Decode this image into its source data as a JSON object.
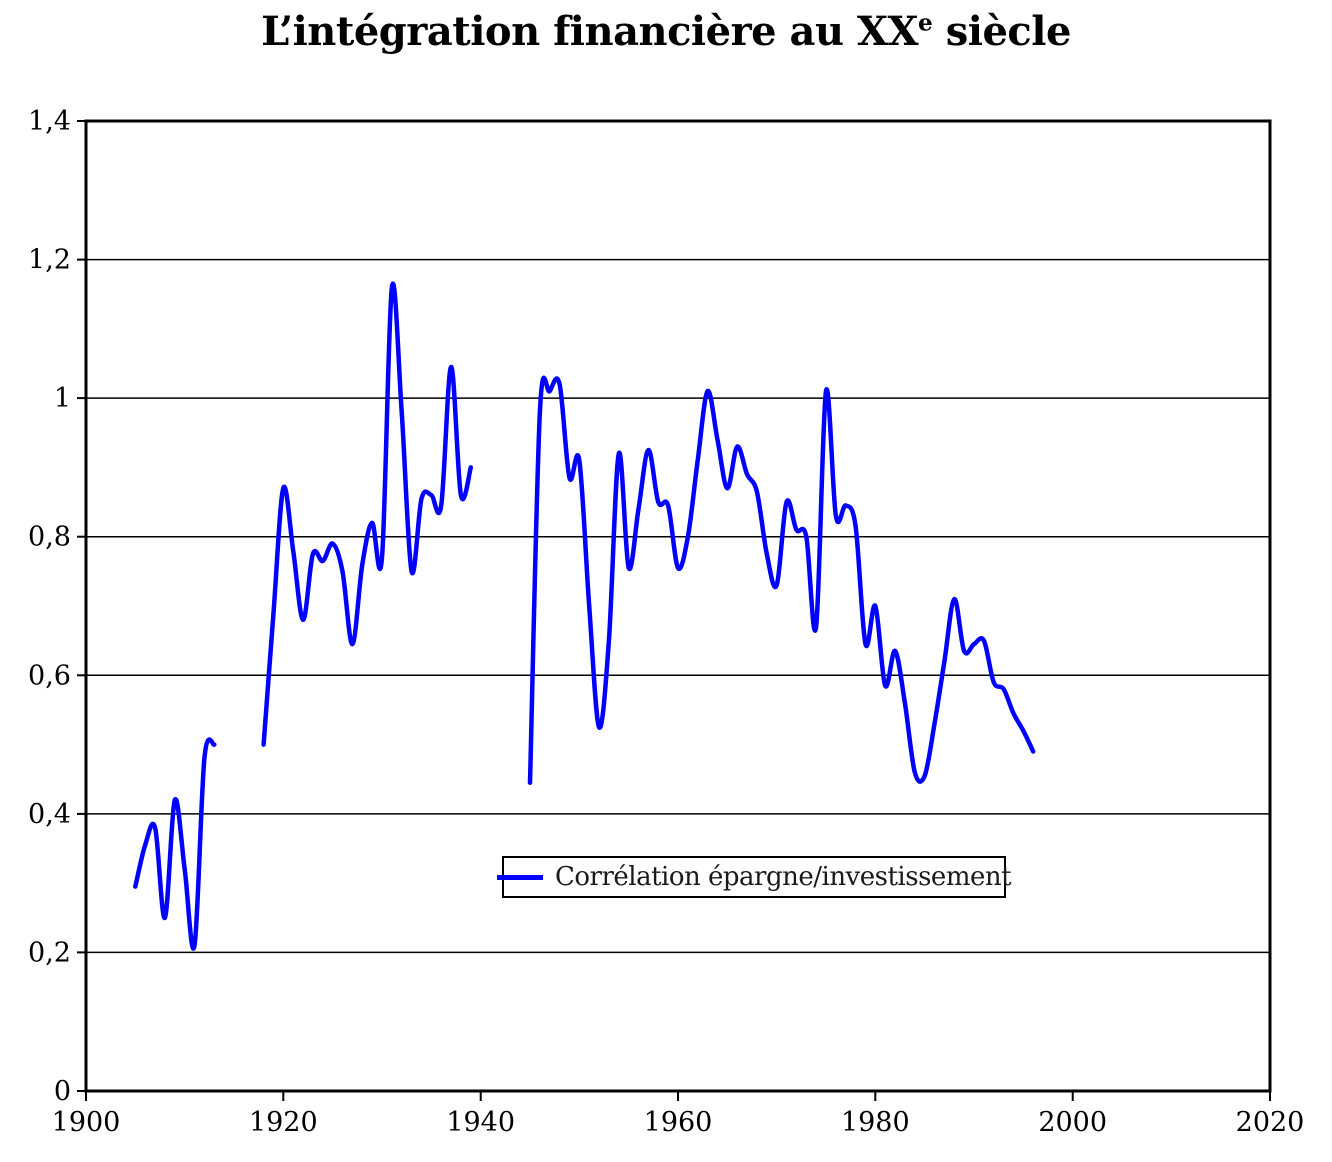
{
  "title": {
    "before_sup": "L’intégration financière au XX",
    "sup": "e",
    "after_sup": " siècle"
  },
  "legend": {
    "label": "Corrélation épargne/investissement"
  },
  "colors": {
    "line": "#0000ff",
    "axis": "#000000",
    "grid": "#000000",
    "background": "#ffffff"
  },
  "chart_data": {
    "type": "line",
    "title": "L’intégration financière au XXe siècle",
    "xlabel": "",
    "ylabel": "",
    "xlim": [
      1900,
      2020
    ],
    "ylim": [
      0,
      1.4
    ],
    "grid": "horizontal",
    "legend_position": "inside-bottom-center",
    "x_ticks": [
      {
        "value": 1900,
        "label": "1900"
      },
      {
        "value": 1920,
        "label": "1920"
      },
      {
        "value": 1940,
        "label": "1940"
      },
      {
        "value": 1960,
        "label": "1960"
      },
      {
        "value": 1980,
        "label": "1980"
      },
      {
        "value": 2000,
        "label": "2000"
      },
      {
        "value": 2020,
        "label": "2020"
      }
    ],
    "y_ticks": [
      {
        "value": 0,
        "label": "0"
      },
      {
        "value": 0.2,
        "label": "0,2"
      },
      {
        "value": 0.4,
        "label": "0,4"
      },
      {
        "value": 0.6,
        "label": "0,6"
      },
      {
        "value": 0.8,
        "label": "0,8"
      },
      {
        "value": 1,
        "label": "1"
      },
      {
        "value": 1.2,
        "label": "1,2"
      },
      {
        "value": 1.4,
        "label": "1,4"
      }
    ],
    "series": [
      {
        "name": "Corrélation épargne/investissement",
        "color": "#0000ff",
        "segments": [
          {
            "start_year": 1905,
            "values": [
              0.295,
              0.355,
              0.38,
              0.25,
              0.42,
              0.32,
              0.21,
              0.48,
              0.5
            ]
          },
          {
            "start_year": 1918,
            "values": [
              0.5,
              0.69,
              0.87,
              0.78,
              0.68,
              0.775,
              0.765,
              0.79,
              0.75,
              0.645,
              0.76,
              0.82,
              0.77,
              1.16,
              0.98,
              0.75,
              0.855,
              0.86,
              0.845,
              1.045,
              0.86,
              0.9
            ]
          },
          {
            "start_year": 1945,
            "values": [
              0.445,
              0.98,
              1.01,
              1.02,
              0.885,
              0.91,
              0.7,
              0.525,
              0.65,
              0.92,
              0.755,
              0.84,
              0.925,
              0.85,
              0.845,
              0.755,
              0.8,
              0.91,
              1.01,
              0.94,
              0.87,
              0.93,
              0.89,
              0.865,
              0.775,
              0.73,
              0.85,
              0.81,
              0.8,
              0.67,
              1.01,
              0.83,
              0.845,
              0.815,
              0.645,
              0.7,
              0.585,
              0.635,
              0.56,
              0.46,
              0.455,
              0.53,
              0.62,
              0.71,
              0.635,
              0.645,
              0.65,
              0.59,
              0.58,
              0.545,
              0.52,
              0.49
            ]
          }
        ]
      }
    ]
  }
}
